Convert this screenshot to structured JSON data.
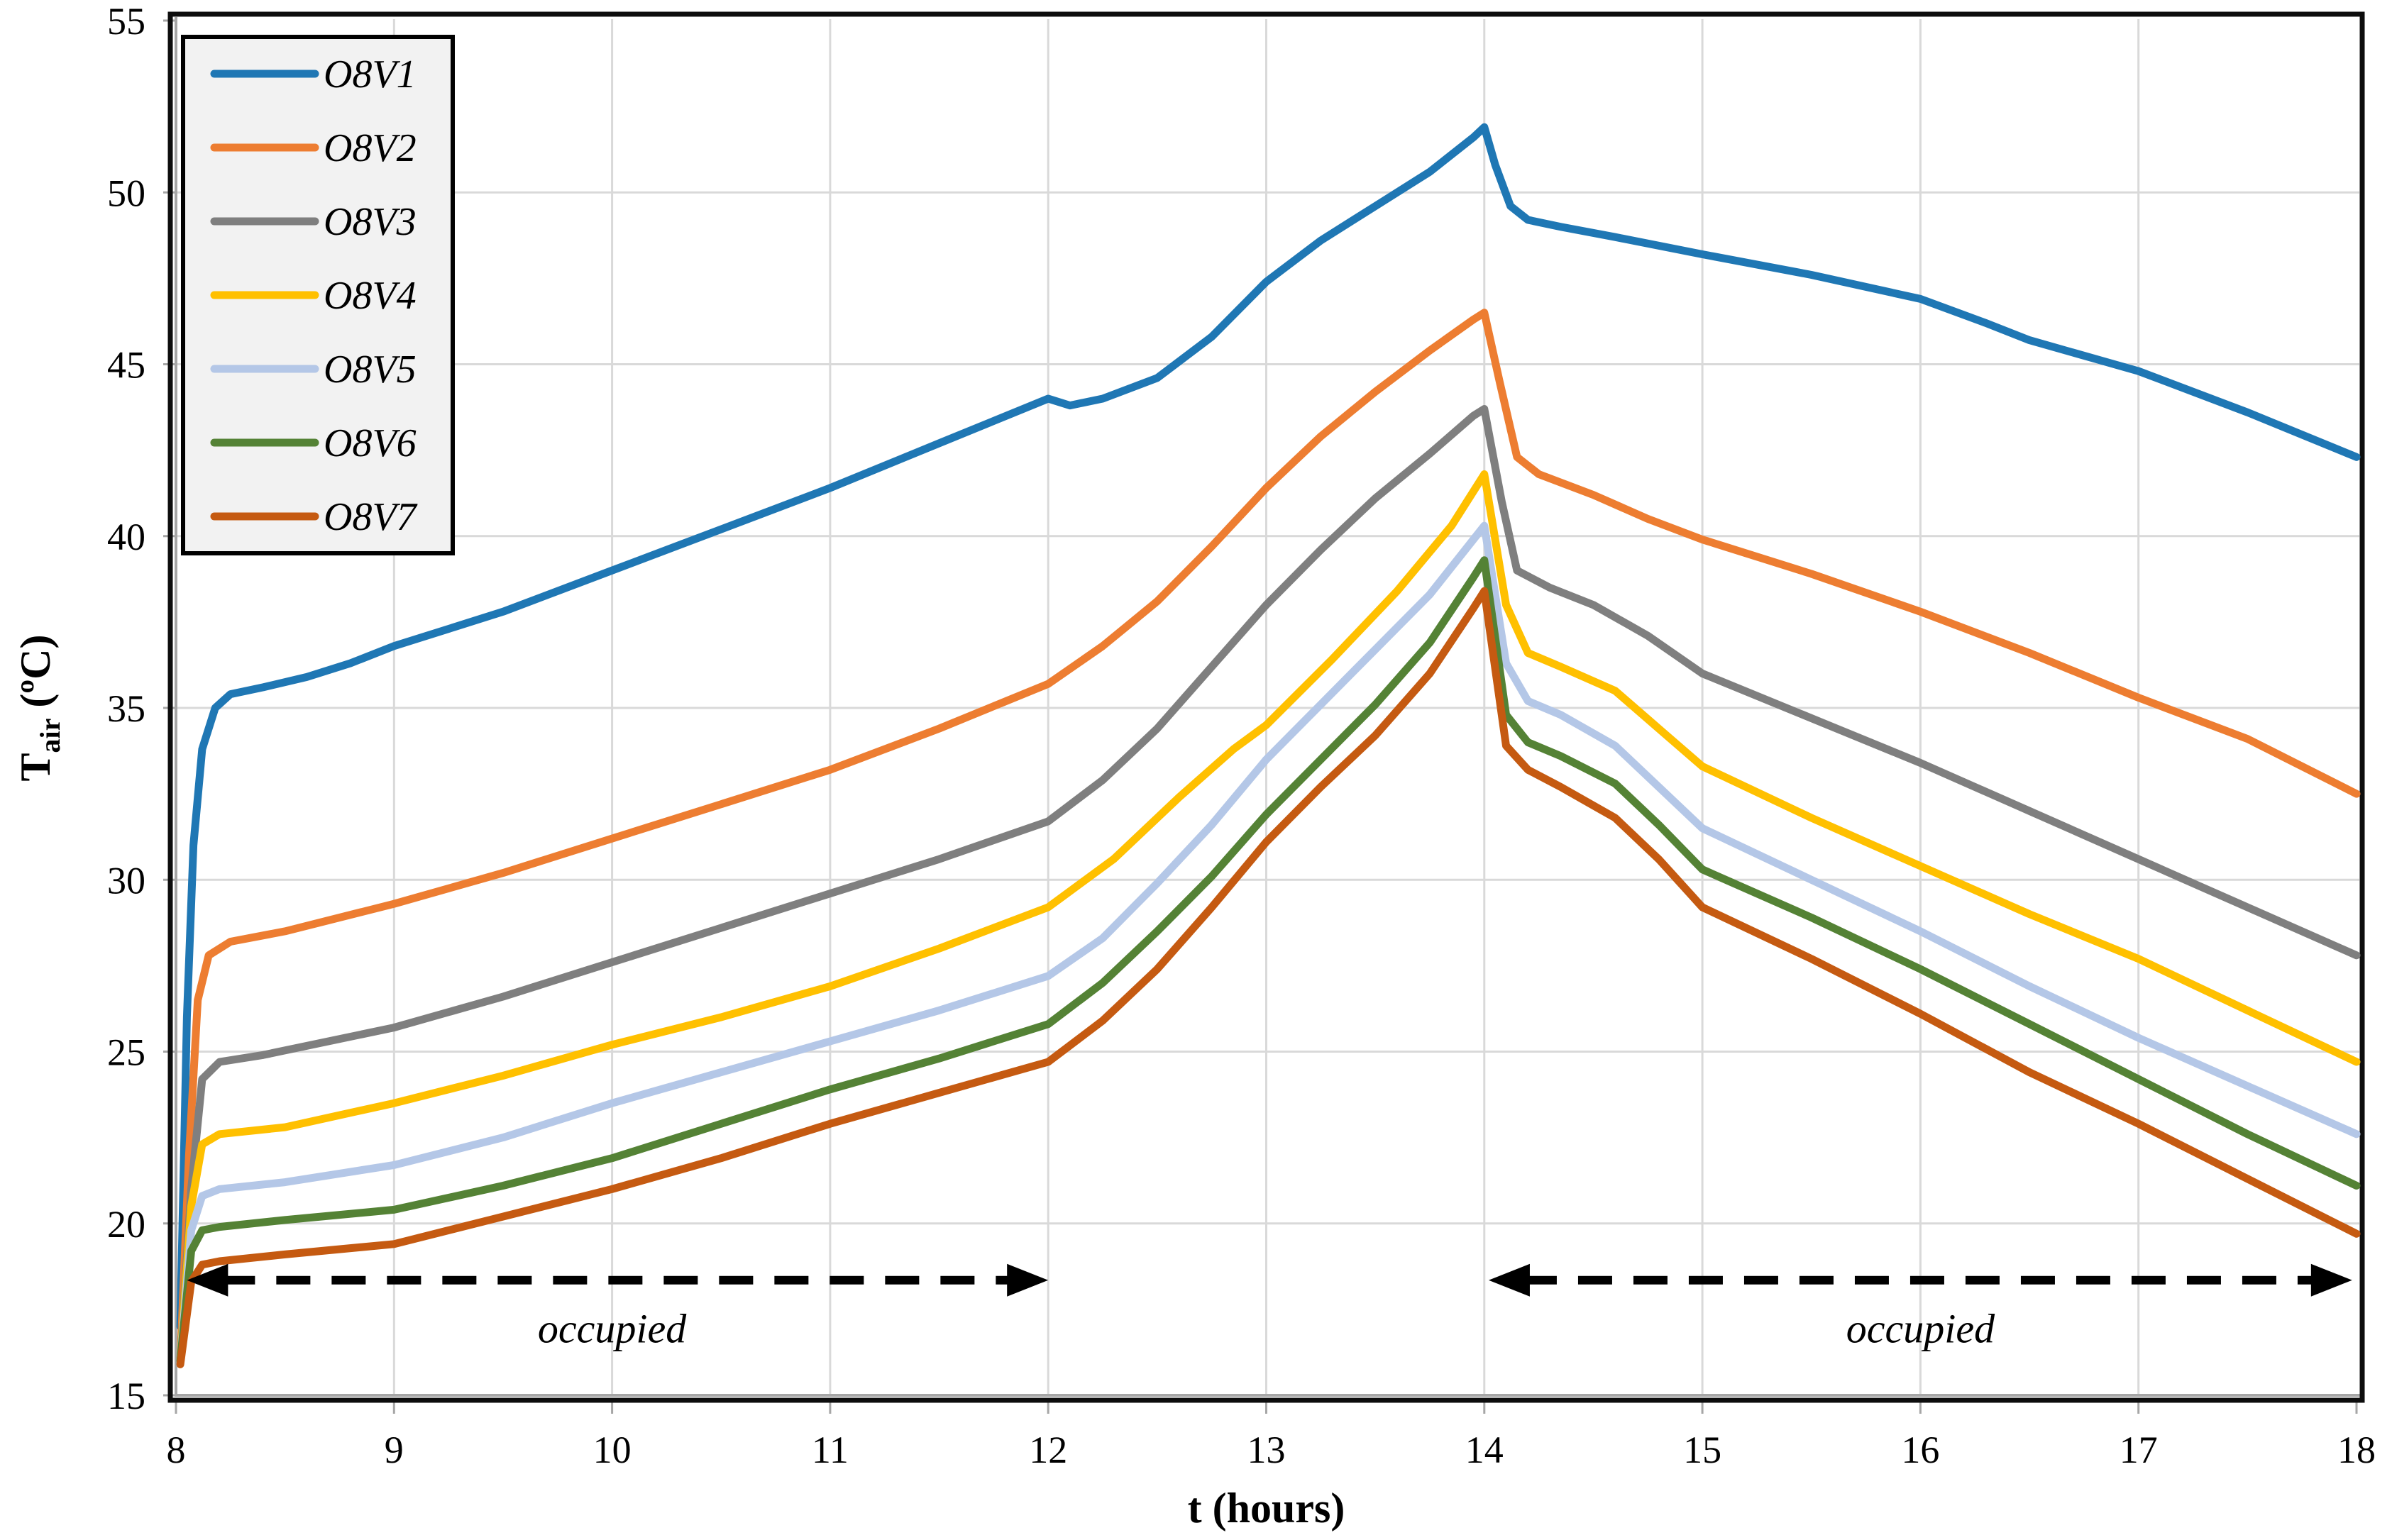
{
  "chart_data": {
    "type": "line",
    "title": "",
    "xlabel": "t (hours)",
    "ylabel_main": "T",
    "ylabel_sub": "air",
    "ylabel_unit": " (ºC)",
    "xlim": [
      8,
      18
    ],
    "ylim": [
      15,
      55
    ],
    "xticks": [
      8,
      9,
      10,
      11,
      12,
      13,
      14,
      15,
      16,
      17,
      18
    ],
    "yticks": [
      15,
      20,
      25,
      30,
      35,
      40,
      45,
      50,
      55
    ],
    "grid": true,
    "legend_position": "top-left",
    "colors": {
      "grid": "#d9d9d9",
      "axis": "#a6a6a6",
      "frame": "#0d0d0d",
      "legend_bg": "#f2f2f2",
      "annotation": "#000000"
    },
    "series": [
      {
        "name": "O8V1",
        "color": "#1F77B4",
        "points": [
          [
            8.02,
            17.0
          ],
          [
            8.05,
            26.0
          ],
          [
            8.08,
            31.0
          ],
          [
            8.12,
            33.8
          ],
          [
            8.18,
            35.0
          ],
          [
            8.25,
            35.4
          ],
          [
            8.4,
            35.6
          ],
          [
            8.6,
            35.9
          ],
          [
            8.8,
            36.3
          ],
          [
            9,
            36.8
          ],
          [
            9.5,
            37.8
          ],
          [
            10,
            39.0
          ],
          [
            10.5,
            40.2
          ],
          [
            11,
            41.4
          ],
          [
            11.5,
            42.7
          ],
          [
            12,
            44.0
          ],
          [
            12.1,
            43.8
          ],
          [
            12.25,
            44.0
          ],
          [
            12.5,
            44.6
          ],
          [
            12.75,
            45.8
          ],
          [
            13,
            47.4
          ],
          [
            13.25,
            48.6
          ],
          [
            13.5,
            49.6
          ],
          [
            13.75,
            50.6
          ],
          [
            13.95,
            51.6
          ],
          [
            14,
            51.9
          ],
          [
            14.05,
            50.8
          ],
          [
            14.12,
            49.6
          ],
          [
            14.2,
            49.2
          ],
          [
            14.35,
            49.0
          ],
          [
            14.6,
            48.7
          ],
          [
            15,
            48.2
          ],
          [
            15.5,
            47.6
          ],
          [
            16,
            46.9
          ],
          [
            16.3,
            46.2
          ],
          [
            16.5,
            45.7
          ],
          [
            17,
            44.8
          ],
          [
            17.5,
            43.6
          ],
          [
            18,
            42.3
          ]
        ]
      },
      {
        "name": "O8V2",
        "color": "#ED7D31",
        "points": [
          [
            8.02,
            16.0
          ],
          [
            8.06,
            22.0
          ],
          [
            8.1,
            26.5
          ],
          [
            8.15,
            27.8
          ],
          [
            8.25,
            28.2
          ],
          [
            8.5,
            28.5
          ],
          [
            9,
            29.3
          ],
          [
            9.5,
            30.2
          ],
          [
            10,
            31.2
          ],
          [
            10.5,
            32.2
          ],
          [
            11,
            33.2
          ],
          [
            11.5,
            34.4
          ],
          [
            12,
            35.7
          ],
          [
            12.25,
            36.8
          ],
          [
            12.5,
            38.1
          ],
          [
            12.75,
            39.7
          ],
          [
            13,
            41.4
          ],
          [
            13.25,
            42.9
          ],
          [
            13.5,
            44.2
          ],
          [
            13.75,
            45.4
          ],
          [
            13.95,
            46.3
          ],
          [
            14,
            46.5
          ],
          [
            14.07,
            44.5
          ],
          [
            14.15,
            42.3
          ],
          [
            14.25,
            41.8
          ],
          [
            14.5,
            41.2
          ],
          [
            14.75,
            40.5
          ],
          [
            15,
            39.9
          ],
          [
            15.5,
            38.9
          ],
          [
            16,
            37.8
          ],
          [
            16.5,
            36.6
          ],
          [
            17,
            35.3
          ],
          [
            17.5,
            34.1
          ],
          [
            18,
            32.5
          ]
        ]
      },
      {
        "name": "O8V3",
        "color": "#7F7F7F",
        "points": [
          [
            8.02,
            16.0
          ],
          [
            8.07,
            21.0
          ],
          [
            8.12,
            24.2
          ],
          [
            8.2,
            24.7
          ],
          [
            8.4,
            24.9
          ],
          [
            9,
            25.7
          ],
          [
            9.5,
            26.6
          ],
          [
            10,
            27.6
          ],
          [
            10.5,
            28.6
          ],
          [
            11,
            29.6
          ],
          [
            11.5,
            30.6
          ],
          [
            12,
            31.7
          ],
          [
            12.25,
            32.9
          ],
          [
            12.5,
            34.4
          ],
          [
            12.75,
            36.2
          ],
          [
            13,
            38.0
          ],
          [
            13.25,
            39.6
          ],
          [
            13.5,
            41.1
          ],
          [
            13.75,
            42.4
          ],
          [
            13.95,
            43.5
          ],
          [
            14,
            43.7
          ],
          [
            14.08,
            41.0
          ],
          [
            14.15,
            39.0
          ],
          [
            14.3,
            38.5
          ],
          [
            14.5,
            38.0
          ],
          [
            14.75,
            37.1
          ],
          [
            15,
            36.0
          ],
          [
            15.5,
            34.7
          ],
          [
            16,
            33.4
          ],
          [
            16.5,
            32.0
          ],
          [
            17,
            30.6
          ],
          [
            17.5,
            29.2
          ],
          [
            18,
            27.8
          ]
        ]
      },
      {
        "name": "O8V4",
        "color": "#FFC000",
        "points": [
          [
            8.02,
            16.0
          ],
          [
            8.07,
            20.5
          ],
          [
            8.12,
            22.3
          ],
          [
            8.2,
            22.6
          ],
          [
            8.5,
            22.8
          ],
          [
            9,
            23.5
          ],
          [
            9.5,
            24.3
          ],
          [
            10,
            25.2
          ],
          [
            10.5,
            26.0
          ],
          [
            11,
            26.9
          ],
          [
            11.5,
            28.0
          ],
          [
            12,
            29.2
          ],
          [
            12.3,
            30.6
          ],
          [
            12.6,
            32.4
          ],
          [
            12.85,
            33.8
          ],
          [
            13,
            34.5
          ],
          [
            13.3,
            36.4
          ],
          [
            13.6,
            38.4
          ],
          [
            13.85,
            40.3
          ],
          [
            13.98,
            41.6
          ],
          [
            14,
            41.8
          ],
          [
            14.1,
            38.0
          ],
          [
            14.2,
            36.6
          ],
          [
            14.35,
            36.2
          ],
          [
            14.6,
            35.5
          ],
          [
            14.8,
            34.4
          ],
          [
            15,
            33.3
          ],
          [
            15.5,
            31.8
          ],
          [
            16,
            30.4
          ],
          [
            16.5,
            29.0
          ],
          [
            17,
            27.7
          ],
          [
            17.5,
            26.2
          ],
          [
            18,
            24.7
          ]
        ]
      },
      {
        "name": "O8V5",
        "color": "#B4C7E7",
        "points": [
          [
            8.02,
            16.0
          ],
          [
            8.07,
            19.8
          ],
          [
            8.12,
            20.8
          ],
          [
            8.2,
            21.0
          ],
          [
            8.5,
            21.2
          ],
          [
            9,
            21.7
          ],
          [
            9.5,
            22.5
          ],
          [
            10,
            23.5
          ],
          [
            10.5,
            24.4
          ],
          [
            11,
            25.3
          ],
          [
            11.5,
            26.2
          ],
          [
            12,
            27.2
          ],
          [
            12.25,
            28.3
          ],
          [
            12.5,
            29.9
          ],
          [
            12.75,
            31.6
          ],
          [
            13,
            33.5
          ],
          [
            13.25,
            35.1
          ],
          [
            13.5,
            36.7
          ],
          [
            13.75,
            38.3
          ],
          [
            13.95,
            39.9
          ],
          [
            14,
            40.3
          ],
          [
            14.1,
            36.3
          ],
          [
            14.2,
            35.2
          ],
          [
            14.35,
            34.8
          ],
          [
            14.6,
            33.9
          ],
          [
            14.8,
            32.7
          ],
          [
            15,
            31.5
          ],
          [
            15.5,
            30.0
          ],
          [
            16,
            28.5
          ],
          [
            16.5,
            26.9
          ],
          [
            17,
            25.4
          ],
          [
            17.5,
            24.0
          ],
          [
            18,
            22.6
          ]
        ]
      },
      {
        "name": "O8V6",
        "color": "#548235",
        "points": [
          [
            8.02,
            16.0
          ],
          [
            8.07,
            19.2
          ],
          [
            8.12,
            19.8
          ],
          [
            8.2,
            19.9
          ],
          [
            8.5,
            20.1
          ],
          [
            9,
            20.4
          ],
          [
            9.5,
            21.1
          ],
          [
            10,
            21.9
          ],
          [
            10.5,
            22.9
          ],
          [
            11,
            23.9
          ],
          [
            11.5,
            24.8
          ],
          [
            12,
            25.8
          ],
          [
            12.25,
            27.0
          ],
          [
            12.5,
            28.5
          ],
          [
            12.75,
            30.1
          ],
          [
            13,
            31.9
          ],
          [
            13.25,
            33.5
          ],
          [
            13.5,
            35.1
          ],
          [
            13.75,
            36.9
          ],
          [
            13.95,
            38.8
          ],
          [
            14,
            39.3
          ],
          [
            14.1,
            34.8
          ],
          [
            14.2,
            34.0
          ],
          [
            14.35,
            33.6
          ],
          [
            14.6,
            32.8
          ],
          [
            14.8,
            31.6
          ],
          [
            15,
            30.3
          ],
          [
            15.5,
            28.9
          ],
          [
            16,
            27.4
          ],
          [
            16.5,
            25.8
          ],
          [
            17,
            24.2
          ],
          [
            17.5,
            22.6
          ],
          [
            18,
            21.1
          ]
        ]
      },
      {
        "name": "O8V7",
        "color": "#C55A11",
        "points": [
          [
            8.02,
            15.9
          ],
          [
            8.07,
            18.3
          ],
          [
            8.12,
            18.8
          ],
          [
            8.2,
            18.9
          ],
          [
            8.5,
            19.1
          ],
          [
            9,
            19.4
          ],
          [
            9.5,
            20.2
          ],
          [
            10,
            21.0
          ],
          [
            10.5,
            21.9
          ],
          [
            11,
            22.9
          ],
          [
            11.5,
            23.8
          ],
          [
            12,
            24.7
          ],
          [
            12.25,
            25.9
          ],
          [
            12.5,
            27.4
          ],
          [
            12.75,
            29.2
          ],
          [
            13,
            31.1
          ],
          [
            13.25,
            32.7
          ],
          [
            13.5,
            34.2
          ],
          [
            13.75,
            36.0
          ],
          [
            13.95,
            37.9
          ],
          [
            14,
            38.4
          ],
          [
            14.1,
            33.9
          ],
          [
            14.2,
            33.2
          ],
          [
            14.35,
            32.7
          ],
          [
            14.6,
            31.8
          ],
          [
            14.8,
            30.6
          ],
          [
            15,
            29.2
          ],
          [
            15.5,
            27.7
          ],
          [
            16,
            26.1
          ],
          [
            16.5,
            24.4
          ],
          [
            17,
            22.9
          ],
          [
            17.5,
            21.3
          ],
          [
            18,
            19.7
          ]
        ]
      }
    ],
    "annotations": [
      {
        "label": "occupied",
        "t1": 8.05,
        "t2": 12.0,
        "T": 18.35,
        "label_t": 10.0,
        "label_T": 16.95
      },
      {
        "label": "occupied",
        "t1": 14.02,
        "t2": 17.98,
        "T": 18.35,
        "label_t": 16.0,
        "label_T": 16.95
      }
    ]
  }
}
